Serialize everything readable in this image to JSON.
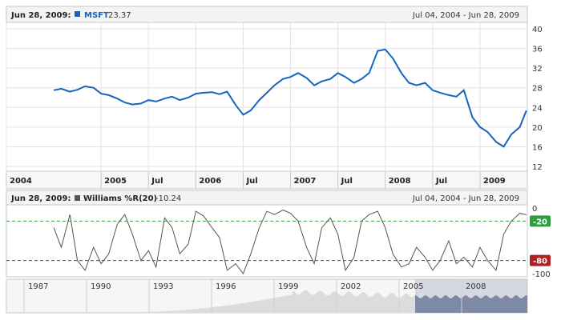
{
  "colors": {
    "price_line": "#1565c0",
    "williams_line": "#555555",
    "level_high": "#2e9e3e",
    "level_low": "#b02020",
    "nav_fill_left": "#dcdcdc",
    "nav_fill_right": "#7e89a6",
    "grid": "#e3e3e3"
  },
  "price_panel": {
    "date_label": "Jun 28, 2009:",
    "series_name": "MSFT",
    "series_value": "23.37",
    "range_label": "Jul 04, 2004 - Jun 28, 2009",
    "y_ticks": [
      "40",
      "36",
      "32",
      "28",
      "24",
      "20",
      "16",
      "12"
    ],
    "x_ticks": [
      "2004",
      "2005",
      "Jul",
      "2006",
      "Jul",
      "2007",
      "Jul",
      "2008",
      "Jul",
      "2009"
    ]
  },
  "indicator_panel": {
    "date_label": "Jun 28, 2009:",
    "series_name": "Williams %R(20)",
    "series_value": "-10.24",
    "range_label": "Jul 04, 2004 - Jun 28, 2009",
    "y_ticks": [
      "0",
      "-100"
    ],
    "level_high": "-20",
    "level_low": "-80"
  },
  "navigator": {
    "x_ticks": [
      "1987",
      "1990",
      "1993",
      "1996",
      "1999",
      "2002",
      "2005",
      "2008"
    ]
  },
  "chart_data": [
    {
      "type": "line",
      "title": "",
      "series": [
        {
          "name": "MSFT",
          "x": [
            2004.5,
            2004.58,
            2004.67,
            2004.75,
            2004.83,
            2004.92,
            2005.0,
            2005.08,
            2005.17,
            2005.25,
            2005.33,
            2005.42,
            2005.5,
            2005.58,
            2005.67,
            2005.75,
            2005.83,
            2005.92,
            2006.0,
            2006.08,
            2006.17,
            2006.25,
            2006.33,
            2006.42,
            2006.5,
            2006.58,
            2006.67,
            2006.75,
            2006.83,
            2006.92,
            2007.0,
            2007.08,
            2007.17,
            2007.25,
            2007.33,
            2007.42,
            2007.5,
            2007.58,
            2007.67,
            2007.75,
            2007.83,
            2007.92,
            2008.0,
            2008.08,
            2008.17,
            2008.25,
            2008.33,
            2008.42,
            2008.5,
            2008.58,
            2008.67,
            2008.75,
            2008.83,
            2008.92,
            2009.0,
            2009.08,
            2009.17,
            2009.25,
            2009.33,
            2009.42,
            2009.49
          ],
          "values": [
            27.5,
            27.8,
            27.2,
            27.6,
            28.3,
            28.0,
            26.8,
            26.5,
            25.8,
            25.0,
            24.6,
            24.8,
            25.5,
            25.2,
            25.8,
            26.2,
            25.5,
            26.0,
            26.8,
            27.0,
            27.1,
            26.7,
            27.2,
            24.5,
            22.5,
            23.4,
            25.5,
            27.0,
            28.5,
            29.8,
            30.2,
            31.0,
            30.0,
            28.5,
            29.3,
            29.8,
            31.0,
            30.2,
            29.0,
            29.8,
            31.0,
            35.5,
            35.8,
            34.0,
            31.0,
            29.0,
            28.5,
            29.0,
            27.5,
            27.0,
            26.5,
            26.2,
            27.5,
            22.0,
            20.0,
            19.0,
            17.0,
            16.0,
            18.5,
            20.0,
            23.37
          ]
        }
      ],
      "xlim": [
        2004.0,
        2009.5
      ],
      "ylim": [
        12,
        40
      ],
      "ylabel": "",
      "xlabel": "",
      "grid": true
    },
    {
      "type": "line",
      "title": "",
      "series": [
        {
          "name": "Williams %R(20)",
          "x": [
            2004.5,
            2004.58,
            2004.67,
            2004.75,
            2004.83,
            2004.92,
            2005.0,
            2005.08,
            2005.17,
            2005.25,
            2005.33,
            2005.42,
            2005.5,
            2005.58,
            2005.67,
            2005.75,
            2005.83,
            2005.92,
            2006.0,
            2006.08,
            2006.17,
            2006.25,
            2006.33,
            2006.42,
            2006.5,
            2006.58,
            2006.67,
            2006.75,
            2006.83,
            2006.92,
            2007.0,
            2007.08,
            2007.17,
            2007.25,
            2007.33,
            2007.42,
            2007.5,
            2007.58,
            2007.67,
            2007.75,
            2007.83,
            2007.92,
            2008.0,
            2008.08,
            2008.17,
            2008.25,
            2008.33,
            2008.42,
            2008.5,
            2008.58,
            2008.67,
            2008.75,
            2008.83,
            2008.92,
            2009.0,
            2009.08,
            2009.17,
            2009.25,
            2009.33,
            2009.42,
            2009.49
          ],
          "values": [
            -30,
            -60,
            -10,
            -80,
            -95,
            -60,
            -85,
            -70,
            -25,
            -10,
            -40,
            -80,
            -65,
            -90,
            -15,
            -30,
            -70,
            -55,
            -5,
            -12,
            -30,
            -45,
            -95,
            -85,
            -100,
            -70,
            -30,
            -5,
            -10,
            -3,
            -8,
            -20,
            -60,
            -85,
            -30,
            -15,
            -40,
            -95,
            -75,
            -20,
            -10,
            -5,
            -30,
            -70,
            -90,
            -85,
            -60,
            -75,
            -95,
            -80,
            -50,
            -85,
            -75,
            -90,
            -60,
            -80,
            -95,
            -40,
            -20,
            -8,
            -10.24
          ]
        }
      ],
      "xlim": [
        2004.0,
        2009.5
      ],
      "ylim": [
        -100,
        0
      ],
      "levels": [
        -20,
        -80
      ],
      "grid": false
    }
  ]
}
